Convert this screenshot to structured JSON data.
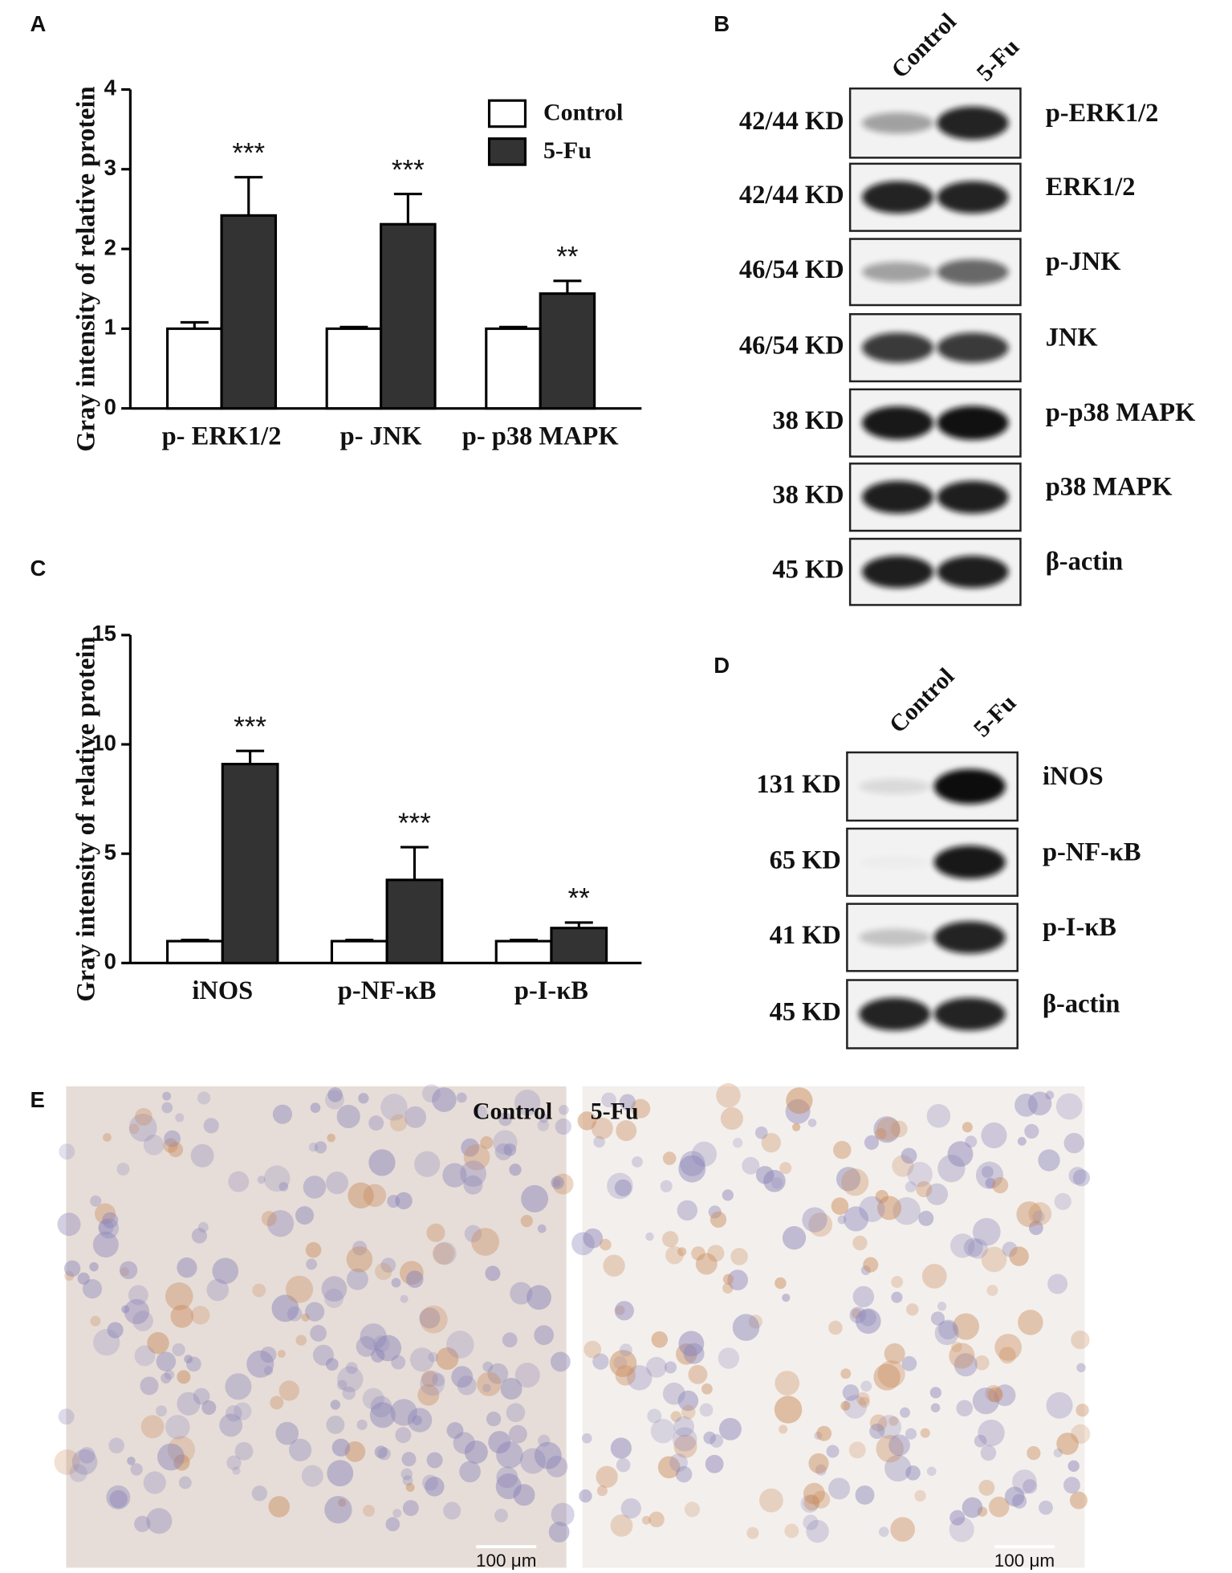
{
  "panels": [
    "A",
    "B",
    "C",
    "D",
    "E"
  ],
  "chart_data": [
    {
      "type": "bar",
      "ylabel": "Gray intensity of relative protein",
      "categories": [
        "p- ERK1/2",
        "p- JNK",
        "p- p38 MAPK"
      ],
      "series": [
        {
          "name": "Control",
          "color": "#ffffff",
          "values": [
            1.0,
            1.0,
            1.0
          ],
          "errors": [
            0.08,
            0.02,
            0.02
          ]
        },
        {
          "name": "5-Fu",
          "color": "#333333",
          "values": [
            2.42,
            2.31,
            1.44
          ],
          "errors": [
            0.48,
            0.38,
            0.16
          ]
        }
      ],
      "annotations": [
        "***",
        "***",
        "**"
      ],
      "ylim": [
        0,
        4
      ],
      "yticks": [
        0,
        1,
        2,
        3,
        4
      ],
      "legend": "top-right"
    },
    {
      "type": "bar",
      "ylabel": "Gray intensity of relative protein",
      "categories": [
        "iNOS",
        "p-NF-κB",
        "p-I-κB"
      ],
      "series": [
        {
          "color": "#ffffff",
          "values": [
            1.0,
            1.0,
            1.0
          ],
          "errors": [
            0.05,
            0.05,
            0.05
          ]
        },
        {
          "color": "#333333",
          "values": [
            9.1,
            3.8,
            1.6
          ],
          "errors": [
            0.6,
            1.5,
            0.25
          ]
        }
      ],
      "annotations": [
        "***",
        "***",
        "**"
      ],
      "ylim": [
        0,
        15
      ],
      "yticks": [
        0,
        5,
        10,
        15
      ],
      "legend": "none"
    }
  ],
  "blot_b": {
    "lanes": [
      "Control",
      "5-Fu"
    ],
    "rows": [
      {
        "size": "42/44 KD",
        "name": "p-ERK1/2"
      },
      {
        "size": "42/44 KD",
        "name": "ERK1/2"
      },
      {
        "size": "46/54 KD",
        "name": "p-JNK"
      },
      {
        "size": "46/54 KD",
        "name": "JNK"
      },
      {
        "size": "38 KD",
        "name": "p-p38 MAPK"
      },
      {
        "size": "38 KD",
        "name": "p38 MAPK"
      },
      {
        "size": "45 KD",
        "name": "β-actin"
      }
    ]
  },
  "blot_d": {
    "lanes": [
      "Control",
      "5-Fu"
    ],
    "rows": [
      {
        "size": "131 KD",
        "name": "iNOS"
      },
      {
        "size": "65 KD",
        "name": "p-NF-κB"
      },
      {
        "size": "41 KD",
        "name": "p-I-κB"
      },
      {
        "size": "45 KD",
        "name": "β-actin"
      }
    ]
  },
  "histology": {
    "labels": [
      "Control",
      "5-Fu"
    ],
    "scale_bar": "100 μm"
  }
}
